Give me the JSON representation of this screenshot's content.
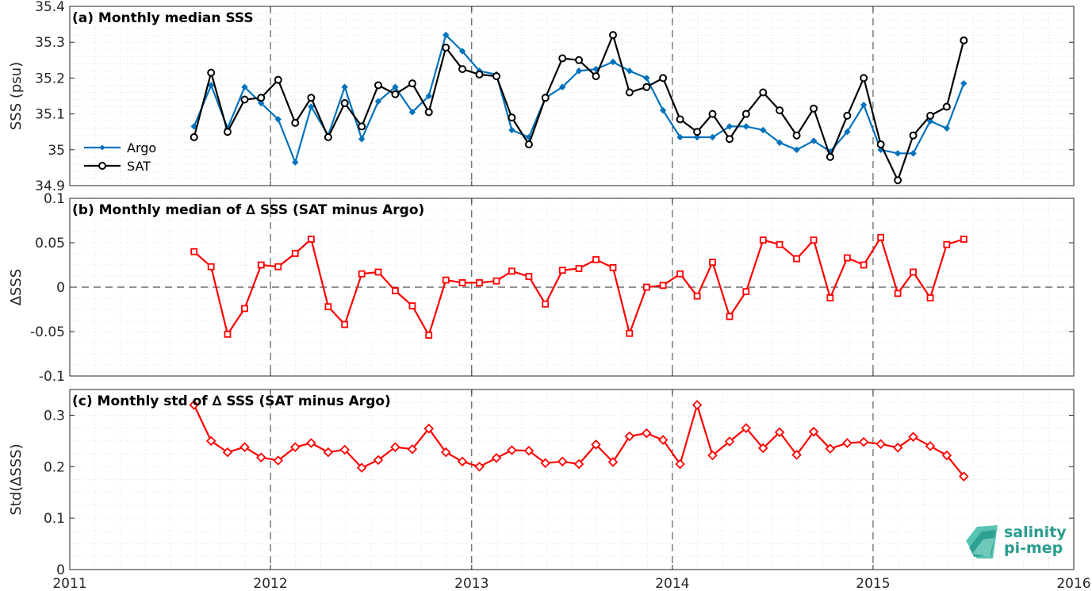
{
  "chart_data": [
    {
      "type": "line",
      "title": "(a) Monthly median SSS",
      "xlabel": "",
      "ylabel": "SSS (psu)",
      "xlim": [
        "2011-01-01",
        "2016-01-01"
      ],
      "ylim": [
        34.9,
        35.4
      ],
      "x_ticks": [
        "2011",
        "2012",
        "2013",
        "2014",
        "2015",
        "2016"
      ],
      "y_ticks": [
        "34.9",
        "35",
        "35.1",
        "35.2",
        "35.3",
        "35.4"
      ],
      "grid": "dotted minor grid, dashed vertical lines at year boundaries",
      "legend": "left",
      "x": [
        "2011-08-15",
        "2011-09-15",
        "2011-10-15",
        "2011-11-15",
        "2011-12-15",
        "2012-01-15",
        "2012-02-15",
        "2012-03-15",
        "2012-04-15",
        "2012-05-15",
        "2012-06-15",
        "2012-07-15",
        "2012-08-15",
        "2012-09-15",
        "2012-10-15",
        "2012-11-15",
        "2012-12-15",
        "2013-01-15",
        "2013-02-15",
        "2013-03-15",
        "2013-04-15",
        "2013-05-15",
        "2013-06-15",
        "2013-07-15",
        "2013-08-15",
        "2013-09-15",
        "2013-10-15",
        "2013-11-15",
        "2013-12-15",
        "2014-01-15",
        "2014-02-15",
        "2014-03-15",
        "2014-04-15",
        "2014-05-15",
        "2014-06-15",
        "2014-07-15",
        "2014-08-15",
        "2014-09-15",
        "2014-10-15",
        "2014-11-15",
        "2014-12-15",
        "2015-01-15",
        "2015-02-15",
        "2015-03-15",
        "2015-04-15",
        "2015-05-15",
        "2015-06-15"
      ],
      "series": [
        {
          "name": "Argo",
          "color": "#0072bd",
          "marker": "diamond",
          "values": [
            35.065,
            35.18,
            35.06,
            35.175,
            35.13,
            35.085,
            34.965,
            35.12,
            35.04,
            35.175,
            35.03,
            35.135,
            35.175,
            35.105,
            35.15,
            35.32,
            35.275,
            35.22,
            35.21,
            35.055,
            35.035,
            35.145,
            35.175,
            35.22,
            35.225,
            35.245,
            35.22,
            35.2,
            35.11,
            35.035,
            35.035,
            35.035,
            35.065,
            35.065,
            35.055,
            35.02,
            35.0,
            35.025,
            34.995,
            35.05,
            35.125,
            35.0,
            34.99,
            34.99,
            35.08,
            35.06,
            35.185
          ]
        },
        {
          "name": "SAT",
          "color": "#000000",
          "marker": "circle",
          "values": [
            35.035,
            35.215,
            35.05,
            35.14,
            35.145,
            35.195,
            35.075,
            35.145,
            35.035,
            35.13,
            35.065,
            35.18,
            35.155,
            35.185,
            35.105,
            35.285,
            35.225,
            35.21,
            35.205,
            35.09,
            35.015,
            35.145,
            35.255,
            35.25,
            35.205,
            35.32,
            35.16,
            35.175,
            35.2,
            35.085,
            35.05,
            35.1,
            35.03,
            35.1,
            35.16,
            35.11,
            35.04,
            35.115,
            34.98,
            35.095,
            35.2,
            35.015,
            34.915,
            35.04,
            35.095,
            35.12,
            35.305
          ]
        }
      ]
    },
    {
      "type": "line",
      "title": "(b) Monthly median of ∆ SSS (SAT minus Argo)",
      "xlabel": "",
      "ylabel": "∆SSS",
      "xlim": [
        "2011-01-01",
        "2016-01-01"
      ],
      "ylim": [
        -0.1,
        0.1
      ],
      "y_ticks": [
        "-0.1",
        "-0.05",
        "0",
        "0.05",
        "0.1"
      ],
      "zero_line": "dashed",
      "grid": "dotted minor grid, dashed vertical lines at year boundaries",
      "x": [
        "2011-08-15",
        "2011-09-15",
        "2011-10-15",
        "2011-11-15",
        "2011-12-15",
        "2012-01-15",
        "2012-02-15",
        "2012-03-15",
        "2012-04-15",
        "2012-05-15",
        "2012-06-15",
        "2012-07-15",
        "2012-08-15",
        "2012-09-15",
        "2012-10-15",
        "2012-11-15",
        "2012-12-15",
        "2013-01-15",
        "2013-02-15",
        "2013-03-15",
        "2013-04-15",
        "2013-05-15",
        "2013-06-15",
        "2013-07-15",
        "2013-08-15",
        "2013-09-15",
        "2013-10-15",
        "2013-11-15",
        "2013-12-15",
        "2014-01-15",
        "2014-02-15",
        "2014-03-15",
        "2014-04-15",
        "2014-05-15",
        "2014-06-15",
        "2014-07-15",
        "2014-08-15",
        "2014-09-15",
        "2014-10-15",
        "2014-11-15",
        "2014-12-15",
        "2015-01-15",
        "2015-02-15",
        "2015-03-15",
        "2015-04-15",
        "2015-05-15",
        "2015-06-15"
      ],
      "series": [
        {
          "color": "#ff0000",
          "marker": "square",
          "values": [
            0.04,
            0.023,
            -0.053,
            -0.024,
            0.025,
            0.023,
            0.038,
            0.054,
            -0.022,
            -0.042,
            0.015,
            0.017,
            -0.004,
            -0.021,
            -0.054,
            0.008,
            0.005,
            0.005,
            0.007,
            0.018,
            0.012,
            -0.019,
            0.019,
            0.021,
            0.031,
            0.022,
            -0.052,
            0.0,
            0.002,
            0.015,
            -0.01,
            0.028,
            -0.033,
            -0.005,
            0.053,
            0.048,
            0.032,
            0.053,
            -0.012,
            0.033,
            0.025,
            0.056,
            -0.007,
            0.017,
            -0.012,
            0.048,
            0.054
          ]
        }
      ]
    },
    {
      "type": "line",
      "title": "(c) Monthly std of ∆ SSS (SAT minus Argo)",
      "xlabel": "",
      "ylabel": "Std(∆SSS)",
      "xlim": [
        "2011-01-01",
        "2016-01-01"
      ],
      "ylim": [
        0,
        0.35
      ],
      "y_ticks": [
        "0",
        "0.1",
        "0.2",
        "0.3"
      ],
      "grid": "dotted minor grid, dashed vertical lines at year boundaries",
      "x": [
        "2011-08-15",
        "2011-09-15",
        "2011-10-15",
        "2011-11-15",
        "2011-12-15",
        "2012-01-15",
        "2012-02-15",
        "2012-03-15",
        "2012-04-15",
        "2012-05-15",
        "2012-06-15",
        "2012-07-15",
        "2012-08-15",
        "2012-09-15",
        "2012-10-15",
        "2012-11-15",
        "2012-12-15",
        "2013-01-15",
        "2013-02-15",
        "2013-03-15",
        "2013-04-15",
        "2013-05-15",
        "2013-06-15",
        "2013-07-15",
        "2013-08-15",
        "2013-09-15",
        "2013-10-15",
        "2013-11-15",
        "2013-12-15",
        "2014-01-15",
        "2014-02-15",
        "2014-03-15",
        "2014-04-15",
        "2014-05-15",
        "2014-06-15",
        "2014-07-15",
        "2014-08-15",
        "2014-09-15",
        "2014-10-15",
        "2014-11-15",
        "2014-12-15",
        "2015-01-15",
        "2015-02-15",
        "2015-03-15",
        "2015-04-15",
        "2015-05-15",
        "2015-06-15"
      ],
      "series": [
        {
          "color": "#ff0000",
          "marker": "diamond",
          "values": [
            0.32,
            0.25,
            0.228,
            0.238,
            0.218,
            0.212,
            0.238,
            0.246,
            0.228,
            0.233,
            0.198,
            0.213,
            0.238,
            0.234,
            0.274,
            0.228,
            0.21,
            0.2,
            0.217,
            0.232,
            0.231,
            0.207,
            0.21,
            0.205,
            0.243,
            0.209,
            0.259,
            0.265,
            0.252,
            0.205,
            0.32,
            0.222,
            0.249,
            0.275,
            0.236,
            0.267,
            0.223,
            0.268,
            0.235,
            0.246,
            0.248,
            0.244,
            0.237,
            0.258,
            0.24,
            0.222,
            0.181
          ]
        }
      ]
    }
  ],
  "logo": {
    "line1": "salinity",
    "line2": "pi-mep",
    "color": "#2a9d8f"
  }
}
